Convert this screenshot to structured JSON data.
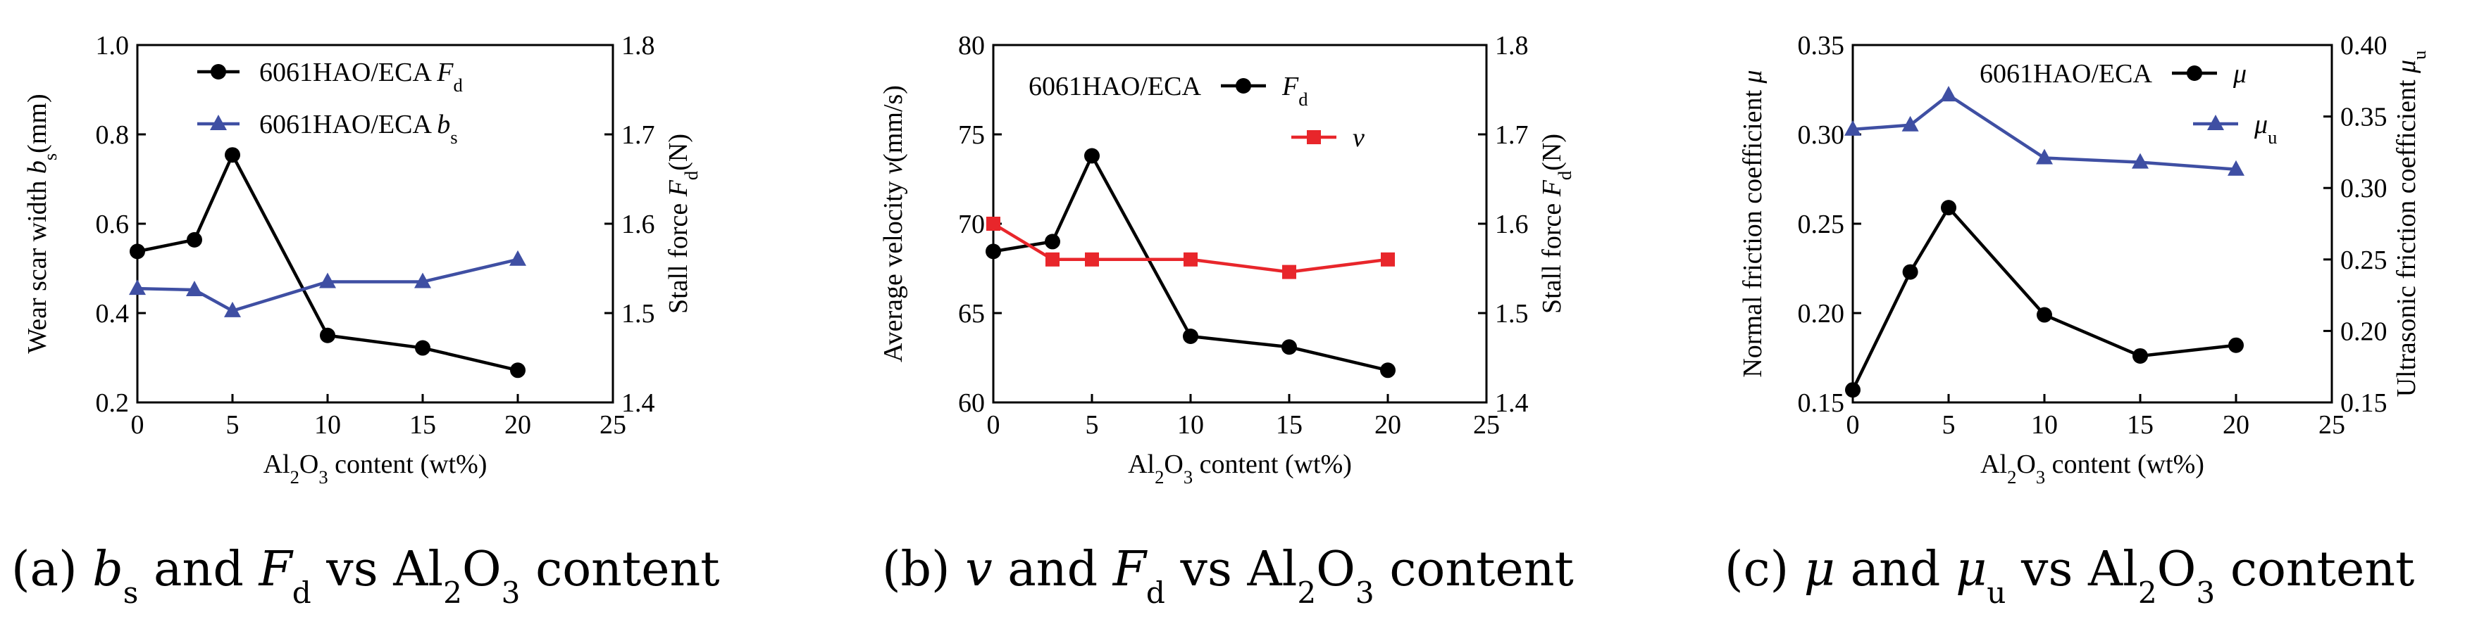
{
  "chart_data": [
    {
      "type": "line",
      "caption": {
        "prefix": "(a) ",
        "v1": "b",
        "v1sub": "s",
        "mid": " and ",
        "v2": "F",
        "v2sub": "d",
        "suffix1": " vs Al",
        "sub1": "2",
        "mid2": "O",
        "sub2": "3",
        "suffix2": " content"
      },
      "x": [
        0,
        3,
        5,
        10,
        15,
        20
      ],
      "xlim": [
        0,
        25
      ],
      "xticks": [
        "0",
        "5",
        "10",
        "15",
        "20",
        "25"
      ],
      "xlabel": {
        "pre": "Al",
        "sub1": "2",
        "mid": "O",
        "sub2": "3",
        "post": " content (wt%)"
      },
      "ylim_left": [
        0.2,
        1.0
      ],
      "yticks_left": [
        "0.2",
        "0.4",
        "0.6",
        "0.8",
        "1.0"
      ],
      "ylabel_left": {
        "text": "Wear scar width ",
        "var": "b",
        "sub": "s",
        "unit": "(mm)"
      },
      "ylim_right": [
        1.4,
        1.8
      ],
      "yticks_right": [
        "1.4",
        "1.5",
        "1.6",
        "1.7",
        "1.8"
      ],
      "ylabel_right": {
        "text": "Stall force ",
        "var": "F",
        "sub": "d",
        "unit": "(N)"
      },
      "series": [
        {
          "name": "6061HAO/ECA",
          "var": "F",
          "sub": "d",
          "axis": "right",
          "color": "#000000",
          "marker": "circle",
          "values": [
            1.569,
            1.582,
            1.677,
            1.475,
            1.461,
            1.436
          ]
        },
        {
          "name": "6061HAO/ECA",
          "var": "b",
          "sub": "s",
          "axis": "left",
          "color": "#3f4fa3",
          "marker": "triangle",
          "values": [
            0.455,
            0.452,
            0.405,
            0.47,
            0.47,
            0.52
          ]
        }
      ]
    },
    {
      "type": "line",
      "caption": {
        "prefix": "(b) ",
        "v1": "v",
        "v1sub": "",
        "mid": " and ",
        "v2": "F",
        "v2sub": "d",
        "suffix1": " vs Al",
        "sub1": "2",
        "mid2": "O",
        "sub2": "3",
        "suffix2": " content"
      },
      "x": [
        0,
        3,
        5,
        10,
        15,
        20
      ],
      "xlim": [
        0,
        25
      ],
      "xticks": [
        "0",
        "5",
        "10",
        "15",
        "20",
        "25"
      ],
      "xlabel": {
        "pre": "Al",
        "sub1": "2",
        "mid": "O",
        "sub2": "3",
        "post": " content (wt%)"
      },
      "ylim_left": [
        60,
        80
      ],
      "yticks_left": [
        "60",
        "65",
        "70",
        "75",
        "80"
      ],
      "ylabel_left": {
        "text": "Average velocity ",
        "var": "v",
        "sub": "",
        "unit": "(mm/s)"
      },
      "ylim_right": [
        1.4,
        1.8
      ],
      "yticks_right": [
        "1.4",
        "1.5",
        "1.6",
        "1.7",
        "1.8"
      ],
      "ylabel_right": {
        "text": "Stall force ",
        "var": "F",
        "sub": "d",
        "unit": "(N)"
      },
      "series": [
        {
          "name": "6061HAO/ECA",
          "var": "F",
          "sub": "d",
          "axis": "right",
          "color": "#000000",
          "marker": "circle",
          "values": [
            1.569,
            1.58,
            1.676,
            1.474,
            1.462,
            1.436
          ]
        },
        {
          "name": "",
          "var": "v",
          "sub": "",
          "axis": "left",
          "color": "#e8262b",
          "marker": "square",
          "values": [
            70.0,
            68.0,
            68.0,
            68.0,
            67.3,
            68.0
          ]
        }
      ]
    },
    {
      "type": "line",
      "caption": {
        "prefix": "(c) ",
        "v1": "μ",
        "v1sub": "",
        "mid": " and ",
        "v2": "μ",
        "v2sub": "u",
        "suffix1": " vs Al",
        "sub1": "2",
        "mid2": "O",
        "sub2": "3",
        "suffix2": " content"
      },
      "x": [
        0,
        3,
        5,
        10,
        15,
        20
      ],
      "xlim": [
        0,
        25
      ],
      "xticks": [
        "0",
        "5",
        "10",
        "15",
        "20",
        "25"
      ],
      "xlabel": {
        "pre": "Al",
        "sub1": "2",
        "mid": "O",
        "sub2": "3",
        "post": " content (wt%)"
      },
      "ylim_left": [
        0.15,
        0.35
      ],
      "yticks_left": [
        "0.15",
        "0.20",
        "0.25",
        "0.30",
        "0.35"
      ],
      "ylabel_left": {
        "text": "Normal friction coefficient ",
        "var": "μ",
        "sub": "",
        "unit": ""
      },
      "ylim_right": [
        0.15,
        0.4
      ],
      "yticks_right": [
        "0.15",
        "0.20",
        "0.25",
        "0.30",
        "0.35",
        "0.40"
      ],
      "ylabel_right": {
        "text": "Ultrasonic friction coefficient ",
        "var": "μ",
        "sub": "u",
        "unit": ""
      },
      "series": [
        {
          "name": "6061HAO/ECA",
          "var": "μ",
          "sub": "",
          "axis": "left",
          "color": "#000000",
          "marker": "circle",
          "values": [
            0.157,
            0.223,
            0.259,
            0.199,
            0.176,
            0.182
          ]
        },
        {
          "name": "",
          "var": "μ",
          "sub": "u",
          "axis": "right",
          "color": "#3f4fa3",
          "marker": "triangle",
          "values": [
            0.341,
            0.344,
            0.365,
            0.321,
            0.318,
            0.313
          ]
        }
      ]
    }
  ]
}
